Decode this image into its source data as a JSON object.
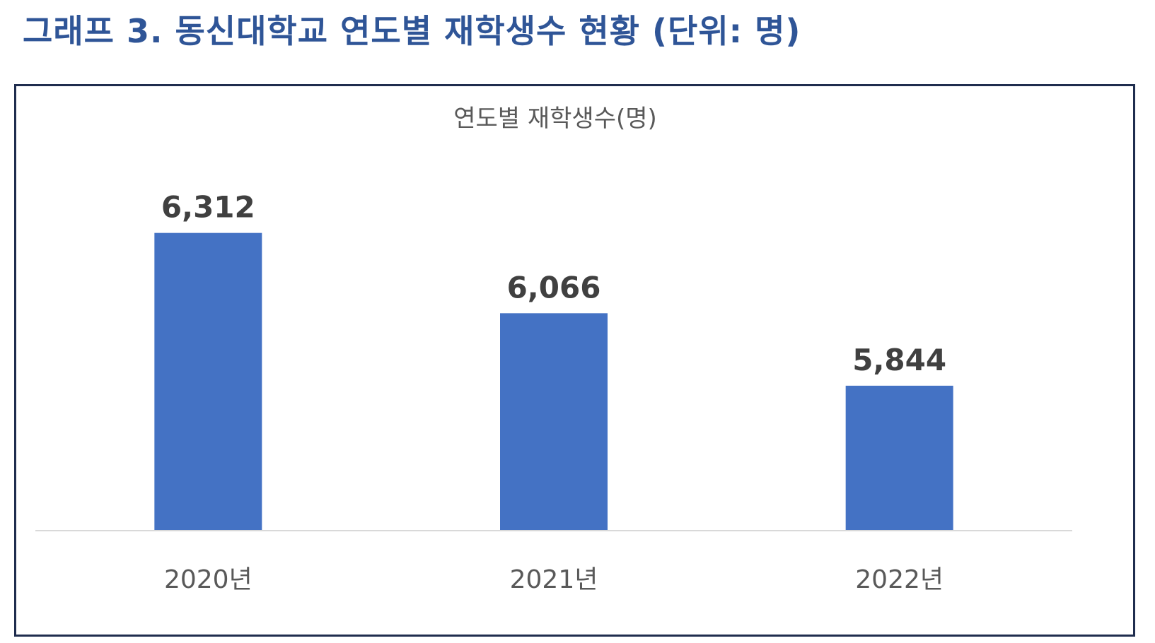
{
  "heading": "그래프 3. 동신대학교 연도별 재학생수 현황 (단위: 명)",
  "colors": {
    "heading": "#2f5597",
    "bar": "#4472c4",
    "frame": "#1f2d4e",
    "axis": "#d9d9d9",
    "label": "#404040",
    "tick": "#595959"
  },
  "chart_data": {
    "type": "bar",
    "title": "연도별 재학생수(명)",
    "categories": [
      "2020년",
      "2021년",
      "2022년"
    ],
    "values": [
      6312,
      6066,
      5844
    ],
    "value_labels": [
      "6,312",
      "6,066",
      "5,844"
    ],
    "xlabel": "",
    "ylabel": "",
    "ylim": [
      5400,
      6400
    ],
    "grid": false,
    "legend": "none"
  }
}
